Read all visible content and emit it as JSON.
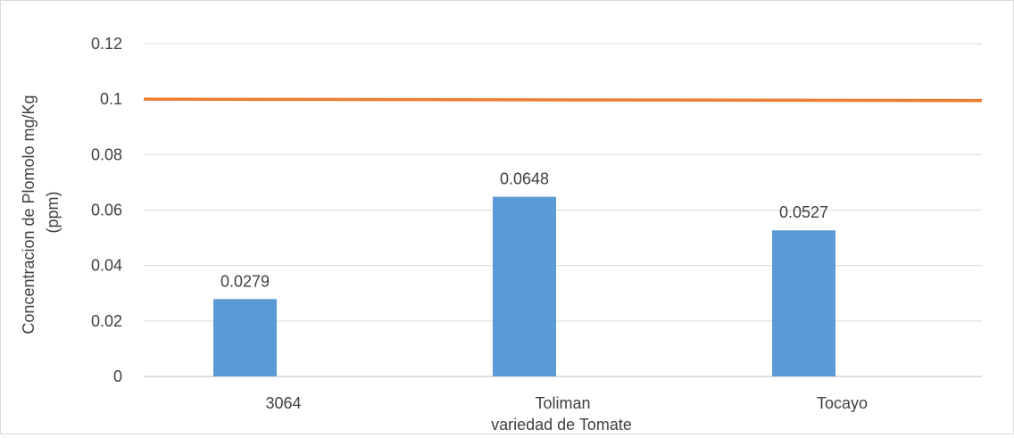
{
  "chart_data": {
    "type": "bar",
    "title": "",
    "xlabel": "variedad de Tomate",
    "ylabel": "Concentracion de Plomolo mg/Kg (ppm)",
    "ylabel_lines": [
      "Concentracion de Plomolo mg/Kg",
      "(ppm)"
    ],
    "categories": [
      "3064",
      "Toliman",
      "Tocayo"
    ],
    "series": [
      {
        "values": [
          0.0279,
          0.0648,
          0.0527
        ],
        "data_labels": [
          "0.0279",
          "0.0648",
          "0.0527"
        ],
        "color": "#5b9bd5"
      }
    ],
    "reference_line": {
      "start": 0.1,
      "end": 0.0995,
      "color": "#ed7d31"
    },
    "ylim": [
      0,
      0.12
    ],
    "yticks": [
      0,
      0.02,
      0.04,
      0.06,
      0.08,
      0.1,
      0.12
    ],
    "ytick_labels": [
      "0",
      "0.02",
      "0.04",
      "0.06",
      "0.08",
      "0.1",
      "0.12"
    ],
    "grid": true,
    "legend": "none",
    "gridline_color": "#d9d9d9",
    "axis_color": "#bfbfbf"
  }
}
